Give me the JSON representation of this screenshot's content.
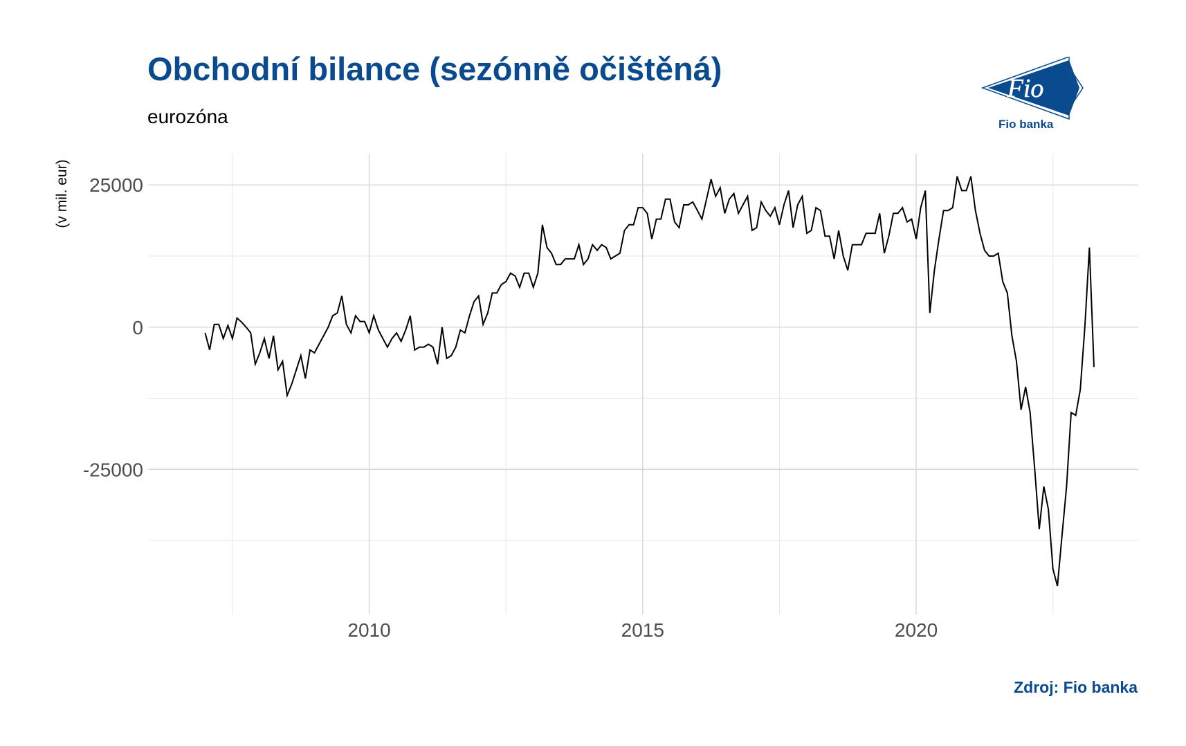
{
  "header": {
    "title": "Obchodní bilance (sezónně očištěná)",
    "subtitle": "eurozóna"
  },
  "logo": {
    "mark_text": "Fio",
    "name": "Fio banka",
    "color": "#0a4a8f"
  },
  "source": "Zdroj: Fio banka",
  "chart_data": {
    "type": "line",
    "title": "Obchodní bilance (sezónně očištěná)",
    "subtitle": "eurozóna",
    "xlabel": "",
    "ylabel": "(v mil. eur)",
    "xlim": [
      2005.97,
      2024.06
    ],
    "ylim": [
      -50500,
      30500
    ],
    "x_ticks": [
      2010,
      2015,
      2020
    ],
    "x_tick_labels": [
      "2010",
      "2015",
      "2020"
    ],
    "x_minor_ticks": [
      2007.5,
      2012.5,
      2017.5,
      2022.5
    ],
    "y_ticks": [
      -25000,
      0,
      25000
    ],
    "y_tick_labels": [
      "-25000",
      "0",
      "25000"
    ],
    "y_minor_ticks": [
      -37500,
      -12500,
      12500
    ],
    "grid": true,
    "line_color": "#000000",
    "series": [
      {
        "x": [
          2007.0,
          2007.083,
          2007.167,
          2007.25,
          2007.333,
          2007.417,
          2007.5,
          2007.583,
          2007.667,
          2007.75,
          2007.833,
          2007.917,
          2008.0,
          2008.083,
          2008.167,
          2008.25,
          2008.333,
          2008.417,
          2008.5,
          2008.583,
          2008.667,
          2008.75,
          2008.833,
          2008.917,
          2009.0,
          2009.083,
          2009.167,
          2009.25,
          2009.333,
          2009.417,
          2009.5,
          2009.583,
          2009.667,
          2009.75,
          2009.833,
          2009.917,
          2010.0,
          2010.083,
          2010.167,
          2010.25,
          2010.333,
          2010.417,
          2010.5,
          2010.583,
          2010.667,
          2010.75,
          2010.833,
          2010.917,
          2011.0,
          2011.083,
          2011.167,
          2011.25,
          2011.333,
          2011.417,
          2011.5,
          2011.583,
          2011.667,
          2011.75,
          2011.833,
          2011.917,
          2012.0,
          2012.083,
          2012.167,
          2012.25,
          2012.333,
          2012.417,
          2012.5,
          2012.583,
          2012.667,
          2012.75,
          2012.833,
          2012.917,
          2013.0,
          2013.083,
          2013.167,
          2013.25,
          2013.333,
          2013.417,
          2013.5,
          2013.583,
          2013.667,
          2013.75,
          2013.833,
          2013.917,
          2014.0,
          2014.083,
          2014.167,
          2014.25,
          2014.333,
          2014.417,
          2014.5,
          2014.583,
          2014.667,
          2014.75,
          2014.833,
          2014.917,
          2015.0,
          2015.083,
          2015.167,
          2015.25,
          2015.333,
          2015.417,
          2015.5,
          2015.583,
          2015.667,
          2015.75,
          2015.833,
          2015.917,
          2016.0,
          2016.083,
          2016.167,
          2016.25,
          2016.333,
          2016.417,
          2016.5,
          2016.583,
          2016.667,
          2016.75,
          2016.833,
          2016.917,
          2017.0,
          2017.083,
          2017.167,
          2017.25,
          2017.333,
          2017.417,
          2017.5,
          2017.583,
          2017.667,
          2017.75,
          2017.833,
          2017.917,
          2018.0,
          2018.083,
          2018.167,
          2018.25,
          2018.333,
          2018.417,
          2018.5,
          2018.583,
          2018.667,
          2018.75,
          2018.833,
          2018.917,
          2019.0,
          2019.083,
          2019.167,
          2019.25,
          2019.333,
          2019.417,
          2019.5,
          2019.583,
          2019.667,
          2019.75,
          2019.833,
          2019.917,
          2020.0,
          2020.083,
          2020.167,
          2020.25,
          2020.333,
          2020.417,
          2020.5,
          2020.583,
          2020.667,
          2020.75,
          2020.833,
          2020.917,
          2021.0,
          2021.083,
          2021.167,
          2021.25,
          2021.333,
          2021.417,
          2021.5,
          2021.583,
          2021.667,
          2021.75,
          2021.833,
          2021.917,
          2022.0,
          2022.083,
          2022.167,
          2022.25,
          2022.333,
          2022.417,
          2022.5,
          2022.583,
          2022.667,
          2022.75,
          2022.833,
          2022.917,
          2023.0,
          2023.083,
          2023.167,
          2023.25
        ],
        "y": [
          -1000,
          -4000,
          500,
          500,
          -2000,
          300,
          -2000,
          1600,
          900,
          0,
          -1000,
          -6500,
          -4500,
          -2000,
          -5500,
          -1500,
          -7500,
          -6000,
          -12000,
          -10000,
          -7500,
          -5000,
          -9000,
          -4000,
          -4500,
          -3000,
          -1500,
          0,
          2000,
          2500,
          5500,
          500,
          -1000,
          2000,
          1000,
          1000,
          -1000,
          2000,
          -500,
          -2000,
          -3500,
          -2000,
          -1000,
          -2500,
          -500,
          2000,
          -4000,
          -3500,
          -3500,
          -3000,
          -3500,
          -6500,
          0,
          -5500,
          -5000,
          -3500,
          -500,
          -1000,
          2000,
          4500,
          5500,
          500,
          2500,
          6000,
          6000,
          7500,
          8000,
          9500,
          9000,
          7000,
          9500,
          9500,
          7000,
          9500,
          18000,
          14000,
          13000,
          11000,
          11000,
          12000,
          12000,
          12000,
          14500,
          11000,
          12000,
          14500,
          13500,
          14500,
          14000,
          12000,
          12500,
          13000,
          17000,
          18000,
          18000,
          21000,
          21000,
          20000,
          15500,
          19000,
          19000,
          22500,
          22500,
          18500,
          17500,
          21500,
          21500,
          22000,
          20500,
          19000,
          22500,
          26000,
          23000,
          24500,
          20000,
          22500,
          23500,
          20000,
          21500,
          23000,
          17000,
          17500,
          22000,
          20500,
          19500,
          21000,
          18000,
          21500,
          24000,
          17500,
          21500,
          23000,
          16500,
          17000,
          21000,
          20500,
          16000,
          16000,
          12000,
          17000,
          12500,
          10000,
          14500,
          14500,
          14500,
          16500,
          16500,
          16500,
          20000,
          13000,
          16000,
          20000,
          20000,
          21000,
          18500,
          19000,
          15500,
          21000,
          24000,
          2500,
          10000,
          15500,
          20500,
          20500,
          21000,
          26500,
          24000,
          24000,
          26500,
          20500,
          16500,
          13500,
          12500,
          12500,
          13000,
          8000,
          6000,
          -1500,
          -6000,
          -14500,
          -10500,
          -15000,
          -25000,
          -35500,
          -28000,
          -32000,
          -42500,
          -45500,
          -36500,
          -28000,
          -15000,
          -15500,
          -11000,
          0,
          14000,
          -7000
        ]
      }
    ]
  }
}
